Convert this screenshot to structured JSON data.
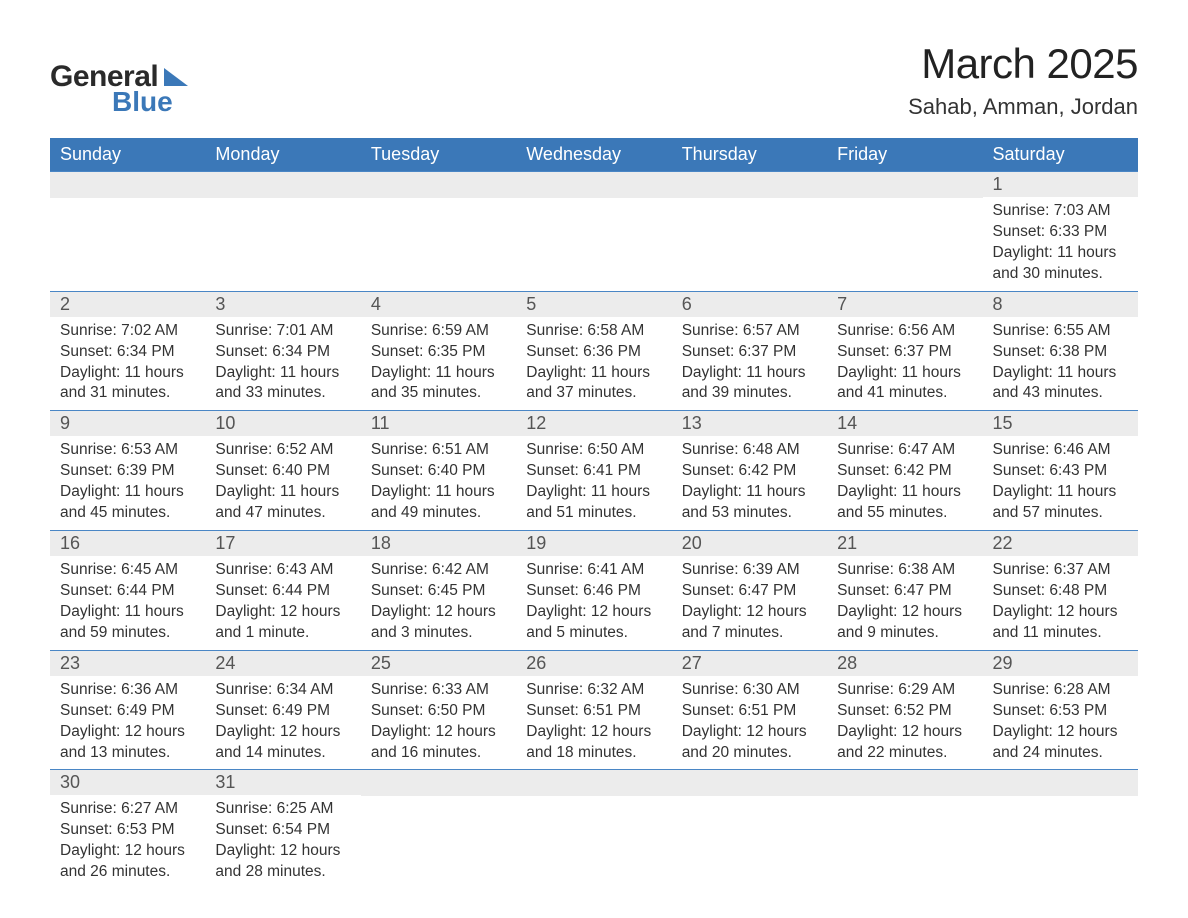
{
  "logo": {
    "word1": "General",
    "word2": "Blue"
  },
  "title": "March 2025",
  "subtitle": "Sahab, Amman, Jordan",
  "colors": {
    "header_bg": "#3b78b8",
    "header_text": "#ffffff",
    "daynum_bg": "#ececec",
    "body_text": "#333333",
    "row_border": "#4a86c5",
    "page_bg": "#ffffff"
  },
  "fontsize": {
    "title": 42,
    "subtitle": 22,
    "th": 18,
    "daynum": 18,
    "body": 15.5
  },
  "columns": [
    "Sunday",
    "Monday",
    "Tuesday",
    "Wednesday",
    "Thursday",
    "Friday",
    "Saturday"
  ],
  "weeks": [
    [
      null,
      null,
      null,
      null,
      null,
      null,
      {
        "n": "1",
        "sunrise": "7:03 AM",
        "sunset": "6:33 PM",
        "daylight": "11 hours and 30 minutes."
      }
    ],
    [
      {
        "n": "2",
        "sunrise": "7:02 AM",
        "sunset": "6:34 PM",
        "daylight": "11 hours and 31 minutes."
      },
      {
        "n": "3",
        "sunrise": "7:01 AM",
        "sunset": "6:34 PM",
        "daylight": "11 hours and 33 minutes."
      },
      {
        "n": "4",
        "sunrise": "6:59 AM",
        "sunset": "6:35 PM",
        "daylight": "11 hours and 35 minutes."
      },
      {
        "n": "5",
        "sunrise": "6:58 AM",
        "sunset": "6:36 PM",
        "daylight": "11 hours and 37 minutes."
      },
      {
        "n": "6",
        "sunrise": "6:57 AM",
        "sunset": "6:37 PM",
        "daylight": "11 hours and 39 minutes."
      },
      {
        "n": "7",
        "sunrise": "6:56 AM",
        "sunset": "6:37 PM",
        "daylight": "11 hours and 41 minutes."
      },
      {
        "n": "8",
        "sunrise": "6:55 AM",
        "sunset": "6:38 PM",
        "daylight": "11 hours and 43 minutes."
      }
    ],
    [
      {
        "n": "9",
        "sunrise": "6:53 AM",
        "sunset": "6:39 PM",
        "daylight": "11 hours and 45 minutes."
      },
      {
        "n": "10",
        "sunrise": "6:52 AM",
        "sunset": "6:40 PM",
        "daylight": "11 hours and 47 minutes."
      },
      {
        "n": "11",
        "sunrise": "6:51 AM",
        "sunset": "6:40 PM",
        "daylight": "11 hours and 49 minutes."
      },
      {
        "n": "12",
        "sunrise": "6:50 AM",
        "sunset": "6:41 PM",
        "daylight": "11 hours and 51 minutes."
      },
      {
        "n": "13",
        "sunrise": "6:48 AM",
        "sunset": "6:42 PM",
        "daylight": "11 hours and 53 minutes."
      },
      {
        "n": "14",
        "sunrise": "6:47 AM",
        "sunset": "6:42 PM",
        "daylight": "11 hours and 55 minutes."
      },
      {
        "n": "15",
        "sunrise": "6:46 AM",
        "sunset": "6:43 PM",
        "daylight": "11 hours and 57 minutes."
      }
    ],
    [
      {
        "n": "16",
        "sunrise": "6:45 AM",
        "sunset": "6:44 PM",
        "daylight": "11 hours and 59 minutes."
      },
      {
        "n": "17",
        "sunrise": "6:43 AM",
        "sunset": "6:44 PM",
        "daylight": "12 hours and 1 minute."
      },
      {
        "n": "18",
        "sunrise": "6:42 AM",
        "sunset": "6:45 PM",
        "daylight": "12 hours and 3 minutes."
      },
      {
        "n": "19",
        "sunrise": "6:41 AM",
        "sunset": "6:46 PM",
        "daylight": "12 hours and 5 minutes."
      },
      {
        "n": "20",
        "sunrise": "6:39 AM",
        "sunset": "6:47 PM",
        "daylight": "12 hours and 7 minutes."
      },
      {
        "n": "21",
        "sunrise": "6:38 AM",
        "sunset": "6:47 PM",
        "daylight": "12 hours and 9 minutes."
      },
      {
        "n": "22",
        "sunrise": "6:37 AM",
        "sunset": "6:48 PM",
        "daylight": "12 hours and 11 minutes."
      }
    ],
    [
      {
        "n": "23",
        "sunrise": "6:36 AM",
        "sunset": "6:49 PM",
        "daylight": "12 hours and 13 minutes."
      },
      {
        "n": "24",
        "sunrise": "6:34 AM",
        "sunset": "6:49 PM",
        "daylight": "12 hours and 14 minutes."
      },
      {
        "n": "25",
        "sunrise": "6:33 AM",
        "sunset": "6:50 PM",
        "daylight": "12 hours and 16 minutes."
      },
      {
        "n": "26",
        "sunrise": "6:32 AM",
        "sunset": "6:51 PM",
        "daylight": "12 hours and 18 minutes."
      },
      {
        "n": "27",
        "sunrise": "6:30 AM",
        "sunset": "6:51 PM",
        "daylight": "12 hours and 20 minutes."
      },
      {
        "n": "28",
        "sunrise": "6:29 AM",
        "sunset": "6:52 PM",
        "daylight": "12 hours and 22 minutes."
      },
      {
        "n": "29",
        "sunrise": "6:28 AM",
        "sunset": "6:53 PM",
        "daylight": "12 hours and 24 minutes."
      }
    ],
    [
      {
        "n": "30",
        "sunrise": "6:27 AM",
        "sunset": "6:53 PM",
        "daylight": "12 hours and 26 minutes."
      },
      {
        "n": "31",
        "sunrise": "6:25 AM",
        "sunset": "6:54 PM",
        "daylight": "12 hours and 28 minutes."
      },
      null,
      null,
      null,
      null,
      null
    ]
  ],
  "labels": {
    "sunrise": "Sunrise: ",
    "sunset": "Sunset: ",
    "daylight": "Daylight: "
  }
}
